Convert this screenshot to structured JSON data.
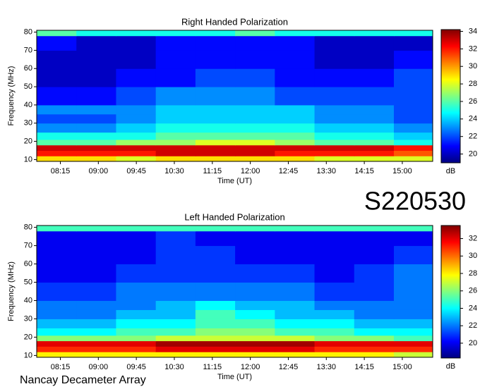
{
  "chart_data": [
    {
      "type": "heatmap",
      "title": "Right Handed Polarization",
      "x_label": "Time (UT)",
      "y_label": "Frequency (MHz)",
      "colorbar_label": "dB",
      "xlim": [
        467,
        936
      ],
      "ylim": [
        9,
        81
      ],
      "xticks": [
        {
          "value": 495,
          "label": "08:15"
        },
        {
          "value": 540,
          "label": "09:00"
        },
        {
          "value": 585,
          "label": "09:45"
        },
        {
          "value": 630,
          "label": "10:30"
        },
        {
          "value": 675,
          "label": "11:15"
        },
        {
          "value": 720,
          "label": "12:00"
        },
        {
          "value": 765,
          "label": "12:45"
        },
        {
          "value": 810,
          "label": "13:30"
        },
        {
          "value": 855,
          "label": "14:15"
        },
        {
          "value": 900,
          "label": "15:00"
        }
      ],
      "yticks": [
        10,
        20,
        30,
        40,
        50,
        60,
        70,
        80
      ],
      "zlim": [
        19,
        34.2
      ],
      "zticks": [
        20,
        22,
        24,
        26,
        28,
        30,
        32,
        34
      ],
      "colorscale": [
        "#000080",
        "#0000ff",
        "#0080ff",
        "#00ffff",
        "#80ff80",
        "#ffff00",
        "#ff8000",
        "#ff0000",
        "#800000"
      ],
      "x_bins": [
        467,
        514,
        561,
        608,
        655,
        702,
        749,
        796,
        843,
        890,
        936
      ],
      "y_bins": [
        9,
        12,
        15,
        18,
        21,
        25,
        30,
        35,
        40,
        50,
        60,
        70,
        78,
        81
      ],
      "z": [
        [
          29,
          29,
          28,
          29,
          29,
          29,
          29,
          28,
          28,
          28
        ],
        [
          32,
          32,
          32,
          33,
          33,
          33,
          32,
          32,
          32,
          31
        ],
        [
          33,
          33,
          33,
          33,
          33,
          33,
          33,
          33,
          33,
          32
        ],
        [
          26,
          26,
          27,
          27,
          28,
          28,
          27,
          26,
          26,
          25
        ],
        [
          25,
          25,
          25,
          26,
          26,
          26,
          26,
          25,
          25,
          24
        ],
        [
          23,
          23,
          24,
          25,
          25,
          25,
          25,
          24,
          24,
          23
        ],
        [
          22,
          22,
          23,
          24,
          24,
          24,
          24,
          23,
          23,
          22
        ],
        [
          23,
          23,
          23,
          24,
          24,
          24,
          24,
          23,
          23,
          22
        ],
        [
          21,
          21,
          22,
          23,
          23,
          23,
          22,
          22,
          22,
          22
        ],
        [
          20,
          20,
          21,
          21,
          22,
          22,
          21,
          21,
          21,
          22
        ],
        [
          20,
          20,
          20,
          21,
          21,
          21,
          21,
          20,
          20,
          21
        ],
        [
          21,
          20,
          20,
          21,
          21,
          21,
          21,
          20,
          20,
          20
        ],
        [
          26,
          25,
          25,
          25,
          25,
          26,
          25,
          25,
          25,
          25
        ]
      ]
    },
    {
      "type": "heatmap",
      "title": "Left Handed Polarization",
      "x_label": "Time (UT)",
      "y_label": "Frequency (MHz)",
      "colorbar_label": "dB",
      "xlim": [
        467,
        936
      ],
      "ylim": [
        9,
        81
      ],
      "xticks": [
        {
          "value": 495,
          "label": "08:15"
        },
        {
          "value": 540,
          "label": "09:00"
        },
        {
          "value": 585,
          "label": "09:45"
        },
        {
          "value": 630,
          "label": "10:30"
        },
        {
          "value": 675,
          "label": "11:15"
        },
        {
          "value": 720,
          "label": "12:00"
        },
        {
          "value": 765,
          "label": "12:45"
        },
        {
          "value": 810,
          "label": "13:30"
        },
        {
          "value": 855,
          "label": "14:15"
        },
        {
          "value": 900,
          "label": "15:00"
        }
      ],
      "yticks": [
        10,
        20,
        30,
        40,
        50,
        60,
        70,
        80
      ],
      "zlim": [
        18.3,
        33.5
      ],
      "zticks": [
        20,
        22,
        24,
        26,
        28,
        30,
        32
      ],
      "colorscale": [
        "#000080",
        "#0000ff",
        "#0080ff",
        "#00ffff",
        "#80ff80",
        "#ffff00",
        "#ff8000",
        "#ff0000",
        "#800000"
      ],
      "x_bins": [
        467,
        514,
        561,
        608,
        655,
        702,
        749,
        796,
        843,
        890,
        936
      ],
      "y_bins": [
        9,
        12,
        15,
        18,
        21,
        25,
        30,
        35,
        40,
        50,
        60,
        70,
        78,
        81
      ],
      "z": [
        [
          28,
          28,
          28,
          28,
          28,
          28,
          28,
          28,
          28,
          27
        ],
        [
          31,
          31,
          31,
          32,
          32,
          32,
          32,
          31,
          31,
          31
        ],
        [
          32,
          32,
          32,
          33,
          33,
          33,
          33,
          32,
          32,
          32
        ],
        [
          26,
          26,
          26,
          27,
          27,
          27,
          27,
          26,
          26,
          25
        ],
        [
          24,
          24,
          25,
          25,
          26,
          26,
          25,
          25,
          24,
          24
        ],
        [
          23,
          23,
          24,
          24,
          25,
          25,
          24,
          24,
          23,
          23
        ],
        [
          22,
          22,
          23,
          23,
          25,
          24,
          23,
          23,
          22,
          22
        ],
        [
          22,
          22,
          22,
          23,
          24,
          23,
          23,
          22,
          22,
          22
        ],
        [
          21,
          21,
          22,
          22,
          22,
          22,
          22,
          21,
          21,
          22
        ],
        [
          20,
          20,
          21,
          21,
          21,
          21,
          21,
          20,
          21,
          22
        ],
        [
          20,
          20,
          20,
          21,
          21,
          20,
          20,
          20,
          20,
          21
        ],
        [
          20,
          20,
          20,
          21,
          20,
          20,
          20,
          20,
          20,
          20
        ],
        [
          25,
          25,
          25,
          25,
          25,
          25,
          25,
          25,
          25,
          25
        ]
      ]
    }
  ],
  "label": "S220530",
  "footer": "Nancay Decameter Array"
}
